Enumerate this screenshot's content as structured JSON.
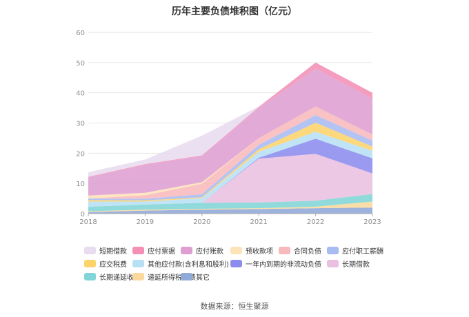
{
  "chart_data": {
    "type": "area",
    "title": "历年主要负债堆积图（亿元）",
    "xlabel": "",
    "ylabel": "",
    "x": [
      "2018",
      "2019",
      "2020",
      "2021",
      "2022",
      "2023"
    ],
    "ylim": [
      0,
      60
    ],
    "yticks": [
      0,
      10,
      20,
      30,
      40,
      50,
      60
    ],
    "grid": true,
    "stacked": true,
    "legend_position": "bottom",
    "series": [
      {
        "name": "其它",
        "color": "#8fa9d9",
        "values": [
          0.5,
          1.0,
          1.3,
          1.5,
          1.8,
          2.0
        ]
      },
      {
        "name": "递延所得税负债",
        "color": "#fbd89b",
        "values": [
          0.3,
          0.3,
          0.3,
          0.3,
          0.5,
          2.0
        ]
      },
      {
        "name": "长期递延收益",
        "color": "#81d5d6",
        "values": [
          1.5,
          1.7,
          2.0,
          1.9,
          2.0,
          2.5
        ]
      },
      {
        "name": "长期借款",
        "color": "#eac0e0",
        "values": [
          0,
          0,
          0,
          14.5,
          15.5,
          6.8
        ]
      },
      {
        "name": "一年内到期的非流动负债",
        "color": "#8c8cee",
        "values": [
          0,
          0,
          0,
          0.3,
          5.0,
          5.0
        ]
      },
      {
        "name": "其他应付款(含利息和股利)",
        "color": "#b7e0f5",
        "values": [
          1.7,
          1.0,
          1.5,
          2.0,
          2.3,
          2.5
        ]
      },
      {
        "name": "应交税费",
        "color": "#fdd36a",
        "values": [
          0.5,
          0.4,
          0.3,
          0.8,
          3.0,
          1.4
        ]
      },
      {
        "name": "应付职工薪酬",
        "color": "#a8bbf2",
        "values": [
          0.5,
          0.5,
          1.0,
          1.5,
          2.5,
          2.0
        ]
      },
      {
        "name": "合同负债",
        "color": "#f8b9bc",
        "values": [
          0,
          1.2,
          3.5,
          2.2,
          2.9,
          2.0
        ]
      },
      {
        "name": "预收款项",
        "color": "#fde3b8",
        "values": [
          1.0,
          0.8,
          0.5,
          0,
          0,
          0
        ]
      },
      {
        "name": "应付账款",
        "color": "#de9ed0",
        "values": [
          6.0,
          9.2,
          8.7,
          10.0,
          12.5,
          11.8
        ]
      },
      {
        "name": "应付票据",
        "color": "#f48fb6",
        "values": [
          0.2,
          0.3,
          0.2,
          0.3,
          2.0,
          2.0
        ]
      },
      {
        "name": "短期借款",
        "color": "#e8dcef",
        "values": [
          1.5,
          1.5,
          6.5,
          0.2,
          0,
          0
        ]
      }
    ]
  },
  "legend_rows": [
    [
      "短期借款",
      "应付票据",
      "应付账款",
      "预收款项",
      "合同负债",
      "应付职工薪酬"
    ],
    [
      "应交税费",
      "其他应付款(含利息和股利)",
      "一年内到期的非流动负债",
      "长期借款"
    ],
    [
      "长期递延收益",
      "递延所得税负债",
      "其它"
    ]
  ],
  "source": "数据来源：恒生聚源"
}
